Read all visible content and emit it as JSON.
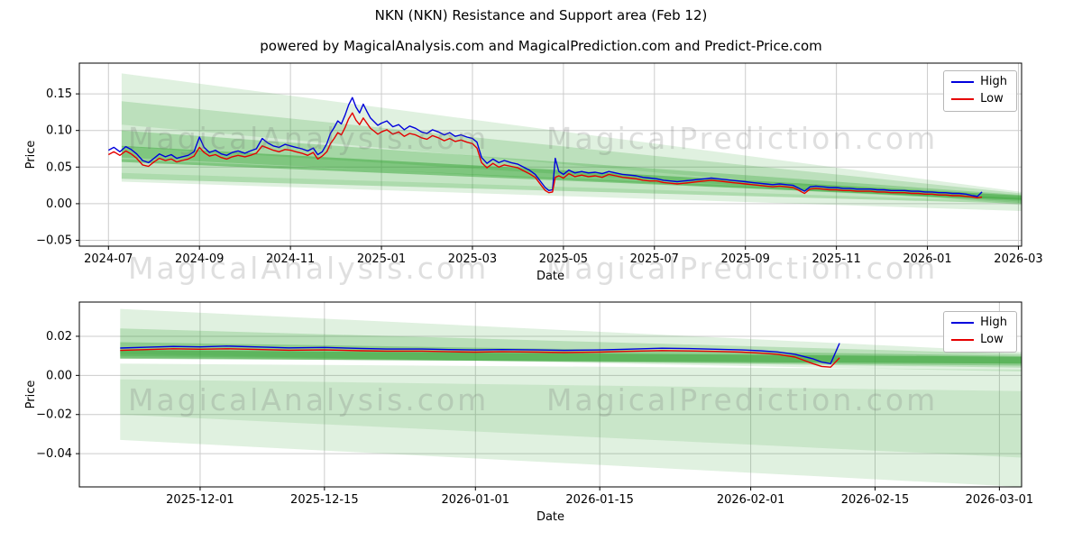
{
  "figure": {
    "title": "NKN (NKN) Resistance and Support area (Feb 12)",
    "subtitle": "powered by MagicalAnalysis.com and MagicalPrediction.com and Predict-Price.com",
    "watermarks": {
      "left": "MagicalAnalysis.com",
      "right": "MagicalPrediction.com"
    },
    "legend": {
      "high": "High",
      "low": "Low"
    },
    "colors": {
      "high": "#0000dd",
      "low": "#e60000",
      "band": "#2ca02c"
    }
  },
  "chart_data": [
    {
      "type": "line",
      "xlabel": "Date",
      "ylabel": "Price",
      "x_unit": "months since 2024-07",
      "xlim": [
        -0.64,
        20.07
      ],
      "ylim": [
        -0.058,
        0.192
      ],
      "grid": true,
      "legend_position": "upper right",
      "xticks": [
        {
          "pos": 0,
          "label": "2024-07"
        },
        {
          "pos": 2,
          "label": "2024-09"
        },
        {
          "pos": 4,
          "label": "2024-11"
        },
        {
          "pos": 6,
          "label": "2025-01"
        },
        {
          "pos": 8,
          "label": "2025-03"
        },
        {
          "pos": 10,
          "label": "2025-05"
        },
        {
          "pos": 12,
          "label": "2025-07"
        },
        {
          "pos": 14,
          "label": "2025-09"
        },
        {
          "pos": 16,
          "label": "2025-11"
        },
        {
          "pos": 18,
          "label": "2026-01"
        },
        {
          "pos": 20,
          "label": "2026-03"
        }
      ],
      "yticks": [
        {
          "pos": -0.05,
          "label": "−0.05"
        },
        {
          "pos": 0,
          "label": "0.00"
        },
        {
          "pos": 0.05,
          "label": "0.05"
        },
        {
          "pos": 0.1,
          "label": "0.10"
        },
        {
          "pos": 0.15,
          "label": "0.15"
        }
      ],
      "x": [
        0,
        0.12,
        0.25,
        0.38,
        0.5,
        0.62,
        0.75,
        0.88,
        1,
        1.12,
        1.25,
        1.38,
        1.5,
        1.62,
        1.75,
        1.88,
        2,
        2.1,
        2.22,
        2.35,
        2.48,
        2.6,
        2.72,
        2.85,
        3,
        3.12,
        3.25,
        3.38,
        3.5,
        3.62,
        3.75,
        3.88,
        4,
        4.12,
        4.25,
        4.38,
        4.5,
        4.6,
        4.7,
        4.8,
        4.88,
        4.96,
        5.04,
        5.12,
        5.2,
        5.28,
        5.36,
        5.44,
        5.52,
        5.6,
        5.68,
        5.76,
        5.84,
        5.92,
        6,
        6.12,
        6.25,
        6.38,
        6.5,
        6.62,
        6.75,
        6.88,
        7,
        7.12,
        7.25,
        7.38,
        7.5,
        7.62,
        7.75,
        7.88,
        8,
        8.1,
        8.2,
        8.32,
        8.45,
        8.58,
        8.7,
        8.85,
        9,
        9.12,
        9.25,
        9.38,
        9.5,
        9.6,
        9.68,
        9.76,
        9.82,
        9.9,
        10,
        10.12,
        10.25,
        10.4,
        10.55,
        10.7,
        10.85,
        11,
        11.15,
        11.3,
        11.45,
        11.6,
        11.75,
        11.9,
        12.05,
        12.2,
        12.35,
        12.5,
        12.65,
        12.8,
        12.95,
        13.1,
        13.25,
        13.4,
        13.55,
        13.7,
        13.85,
        14,
        14.15,
        14.3,
        14.45,
        14.6,
        14.75,
        14.9,
        15.05,
        15.18,
        15.3,
        15.42,
        15.55,
        15.7,
        15.85,
        16,
        16.15,
        16.3,
        16.45,
        16.6,
        16.75,
        16.9,
        17.05,
        17.2,
        17.35,
        17.5,
        17.65,
        17.8,
        17.95,
        18.1,
        18.25,
        18.4,
        18.55,
        18.7,
        18.85,
        19,
        19.1,
        19.2
      ],
      "series": [
        {
          "name": "High",
          "color_key": "high",
          "values": [
            0.073,
            0.077,
            0.071,
            0.078,
            0.074,
            0.068,
            0.059,
            0.056,
            0.062,
            0.068,
            0.064,
            0.067,
            0.062,
            0.064,
            0.066,
            0.071,
            0.091,
            0.077,
            0.07,
            0.073,
            0.068,
            0.066,
            0.07,
            0.072,
            0.069,
            0.072,
            0.075,
            0.089,
            0.083,
            0.079,
            0.077,
            0.081,
            0.079,
            0.077,
            0.075,
            0.072,
            0.076,
            0.067,
            0.071,
            0.082,
            0.096,
            0.104,
            0.113,
            0.109,
            0.121,
            0.135,
            0.145,
            0.132,
            0.124,
            0.136,
            0.126,
            0.117,
            0.112,
            0.107,
            0.11,
            0.113,
            0.105,
            0.108,
            0.101,
            0.106,
            0.103,
            0.098,
            0.096,
            0.101,
            0.098,
            0.094,
            0.097,
            0.092,
            0.094,
            0.091,
            0.089,
            0.084,
            0.063,
            0.055,
            0.061,
            0.056,
            0.059,
            0.056,
            0.054,
            0.05,
            0.046,
            0.04,
            0.03,
            0.022,
            0.018,
            0.019,
            0.062,
            0.044,
            0.04,
            0.046,
            0.042,
            0.044,
            0.042,
            0.043,
            0.041,
            0.044,
            0.042,
            0.04,
            0.039,
            0.038,
            0.036,
            0.035,
            0.034,
            0.032,
            0.031,
            0.03,
            0.031,
            0.032,
            0.033,
            0.034,
            0.035,
            0.034,
            0.033,
            0.032,
            0.031,
            0.03,
            0.029,
            0.028,
            0.027,
            0.026,
            0.027,
            0.026,
            0.025,
            0.021,
            0.017,
            0.023,
            0.024,
            0.023,
            0.022,
            0.022,
            0.021,
            0.021,
            0.02,
            0.02,
            0.02,
            0.019,
            0.019,
            0.018,
            0.018,
            0.018,
            0.017,
            0.017,
            0.016,
            0.016,
            0.015,
            0.015,
            0.014,
            0.014,
            0.013,
            0.011,
            0.01,
            0.016
          ]
        },
        {
          "name": "Low",
          "color_key": "low",
          "values": [
            0.067,
            0.071,
            0.066,
            0.072,
            0.068,
            0.062,
            0.053,
            0.051,
            0.057,
            0.062,
            0.059,
            0.061,
            0.057,
            0.059,
            0.061,
            0.065,
            0.077,
            0.07,
            0.065,
            0.067,
            0.063,
            0.061,
            0.064,
            0.066,
            0.064,
            0.066,
            0.069,
            0.079,
            0.076,
            0.073,
            0.071,
            0.074,
            0.073,
            0.071,
            0.069,
            0.066,
            0.07,
            0.061,
            0.065,
            0.071,
            0.082,
            0.089,
            0.097,
            0.094,
            0.104,
            0.116,
            0.124,
            0.114,
            0.108,
            0.117,
            0.11,
            0.103,
            0.099,
            0.095,
            0.098,
            0.101,
            0.095,
            0.098,
            0.092,
            0.096,
            0.094,
            0.09,
            0.088,
            0.093,
            0.09,
            0.086,
            0.089,
            0.085,
            0.087,
            0.084,
            0.082,
            0.076,
            0.056,
            0.049,
            0.055,
            0.05,
            0.053,
            0.051,
            0.049,
            0.045,
            0.041,
            0.036,
            0.026,
            0.018,
            0.015,
            0.016,
            0.036,
            0.038,
            0.035,
            0.041,
            0.037,
            0.039,
            0.037,
            0.038,
            0.036,
            0.04,
            0.038,
            0.036,
            0.035,
            0.034,
            0.032,
            0.031,
            0.031,
            0.029,
            0.028,
            0.027,
            0.028,
            0.029,
            0.03,
            0.031,
            0.032,
            0.031,
            0.03,
            0.029,
            0.028,
            0.027,
            0.026,
            0.025,
            0.024,
            0.023,
            0.024,
            0.023,
            0.022,
            0.018,
            0.014,
            0.02,
            0.021,
            0.02,
            0.019,
            0.019,
            0.018,
            0.018,
            0.017,
            0.017,
            0.017,
            0.016,
            0.016,
            0.015,
            0.015,
            0.015,
            0.014,
            0.014,
            0.013,
            0.013,
            0.012,
            0.012,
            0.011,
            0.011,
            0.01,
            0.009,
            0.008,
            0.009
          ]
        }
      ],
      "bands": [
        {
          "x0": 0.29,
          "x1": 20.07,
          "top_left": 0.178,
          "bottom_left": 0.108,
          "top_right": 0.016,
          "bottom_right": -0.002,
          "opacity": 0.15
        },
        {
          "x0": 0.29,
          "x1": 20.07,
          "top_left": 0.14,
          "bottom_left": 0.078,
          "top_right": 0.014,
          "bottom_right": 0.001,
          "opacity": 0.2
        },
        {
          "x0": 0.29,
          "x1": 20.07,
          "top_left": 0.1,
          "bottom_left": 0.063,
          "top_right": 0.012,
          "bottom_right": 0.003,
          "opacity": 0.28
        },
        {
          "x0": 0.29,
          "x1": 20.07,
          "top_left": 0.079,
          "bottom_left": 0.057,
          "top_right": 0.011,
          "bottom_right": 0.005,
          "opacity": 0.45
        },
        {
          "x0": 0.29,
          "x1": 20.07,
          "top_left": 0.061,
          "bottom_left": 0.034,
          "top_right": 0.008,
          "bottom_right": 0.0,
          "opacity": 0.28
        },
        {
          "x0": 0.29,
          "x1": 20.07,
          "top_left": 0.042,
          "bottom_left": 0.03,
          "top_right": 0.003,
          "bottom_right": -0.01,
          "opacity": 0.15
        }
      ]
    },
    {
      "type": "line",
      "xlabel": "Date",
      "ylabel": "Price",
      "x_unit": "days since 2025-12-01",
      "xlim": [
        -13.6,
        92.5
      ],
      "ylim": [
        -0.057,
        0.0375
      ],
      "grid": true,
      "legend_position": "upper right",
      "xticks": [
        {
          "pos": 0,
          "label": "2025-12-01"
        },
        {
          "pos": 14,
          "label": "2025-12-15"
        },
        {
          "pos": 31,
          "label": "2026-01-01"
        },
        {
          "pos": 45,
          "label": "2026-01-15"
        },
        {
          "pos": 62,
          "label": "2026-02-01"
        },
        {
          "pos": 76,
          "label": "2026-02-15"
        },
        {
          "pos": 90,
          "label": "2026-03-01"
        }
      ],
      "yticks": [
        {
          "pos": -0.04,
          "label": "−0.04"
        },
        {
          "pos": -0.02,
          "label": "−0.02"
        },
        {
          "pos": 0,
          "label": "0.00"
        },
        {
          "pos": 0.02,
          "label": "0.02"
        }
      ],
      "x": [
        -9,
        -6,
        -3,
        0,
        3,
        7,
        10,
        14,
        18,
        21,
        25,
        28,
        31,
        34,
        38,
        41,
        45,
        48,
        52,
        55,
        58,
        61,
        63,
        65,
        67,
        69,
        70,
        71,
        72
      ],
      "series": [
        {
          "name": "High",
          "color_key": "high",
          "values": [
            0.014,
            0.0144,
            0.0148,
            0.0146,
            0.015,
            0.0145,
            0.0141,
            0.0143,
            0.0138,
            0.0135,
            0.0135,
            0.0132,
            0.013,
            0.0132,
            0.013,
            0.0128,
            0.013,
            0.0134,
            0.0139,
            0.0137,
            0.0134,
            0.013,
            0.0126,
            0.012,
            0.0108,
            0.0085,
            0.0068,
            0.006,
            0.0165
          ]
        },
        {
          "name": "Low",
          "color_key": "low",
          "values": [
            0.0128,
            0.0132,
            0.0136,
            0.0134,
            0.0136,
            0.0132,
            0.0129,
            0.013,
            0.0126,
            0.0124,
            0.0124,
            0.0121,
            0.0119,
            0.0121,
            0.0119,
            0.0117,
            0.0119,
            0.0123,
            0.0127,
            0.0125,
            0.0123,
            0.0119,
            0.0114,
            0.0108,
            0.0094,
            0.006,
            0.0046,
            0.0042,
            0.009
          ]
        }
      ],
      "bands": [
        {
          "x0": -9,
          "x1": 92.5,
          "top_left": 0.034,
          "bottom_left": 0.011,
          "top_right": 0.012,
          "bottom_right": 0.002,
          "opacity": 0.15
        },
        {
          "x0": -9,
          "x1": 92.5,
          "top_left": 0.024,
          "bottom_left": 0.01,
          "top_right": 0.011,
          "bottom_right": 0.004,
          "opacity": 0.22
        },
        {
          "x0": -9,
          "x1": 92.5,
          "top_left": 0.017,
          "bottom_left": 0.009,
          "top_right": 0.01,
          "bottom_right": 0.005,
          "opacity": 0.3
        },
        {
          "x0": -9,
          "x1": 92.5,
          "top_left": 0.013,
          "bottom_left": 0.0085,
          "top_right": 0.0095,
          "bottom_right": 0.006,
          "opacity": 0.5
        },
        {
          "x0": -9,
          "x1": 92.5,
          "top_left": 0.006,
          "bottom_left": -0.033,
          "top_right": 0.003,
          "bottom_right": -0.057,
          "opacity": 0.15
        },
        {
          "x0": -9,
          "x1": 92.5,
          "top_left": -0.002,
          "bottom_left": -0.02,
          "top_right": -0.008,
          "bottom_right": -0.042,
          "opacity": 0.12
        }
      ]
    }
  ]
}
